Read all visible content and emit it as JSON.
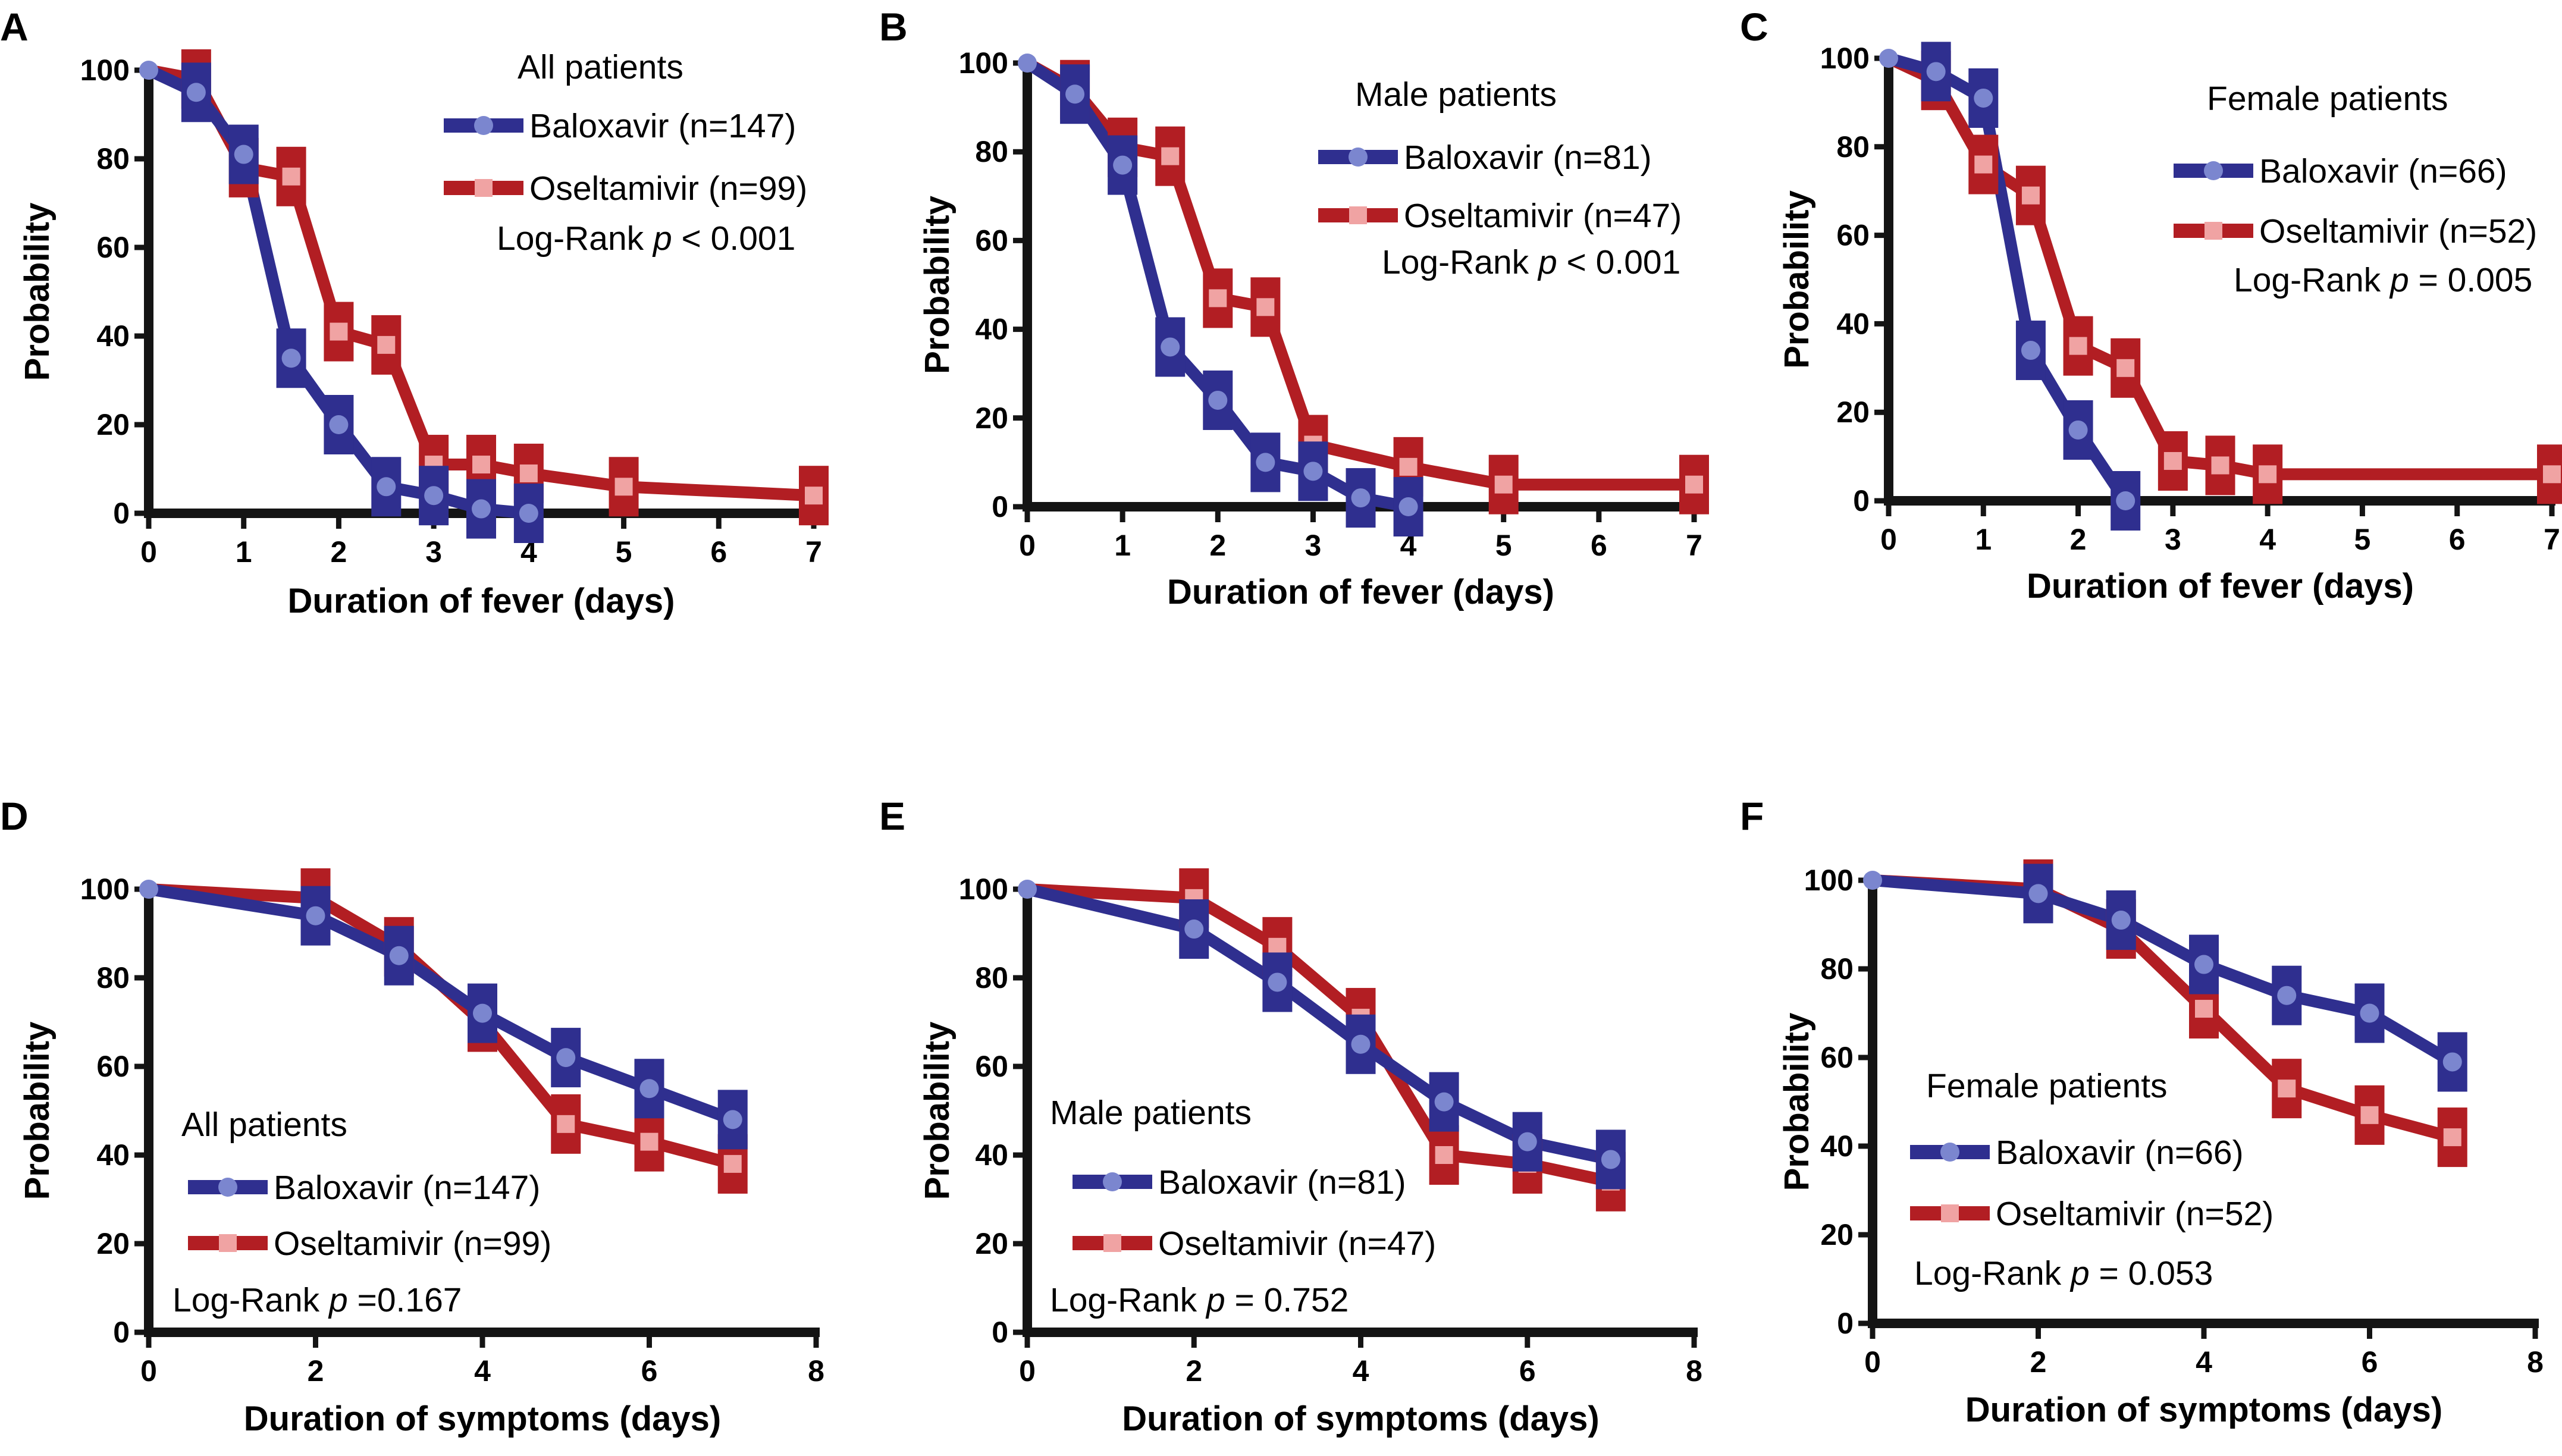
{
  "colors": {
    "baloxavir_line": "#2f2f8f",
    "baloxavir_marker": "#7b86cf",
    "oseltamivir_line": "#b21e23",
    "oseltamivir_marker": "#f0a3a3",
    "axis": "#141414"
  },
  "chart_data": [
    {
      "panel": "A",
      "type": "line",
      "title": "All patients",
      "xlabel": "Duration of fever (days)",
      "ylabel": "Probability",
      "xlim": [
        0,
        7
      ],
      "ylim": [
        0,
        100
      ],
      "xticks": [
        0,
        1,
        2,
        3,
        4,
        5,
        6,
        7
      ],
      "yticks": [
        0,
        20,
        40,
        60,
        80,
        100
      ],
      "legend": [
        "Baloxavir (n=147)",
        "Oseltamivir (n=99)"
      ],
      "pvalue": "Log-Rank p < 0.001",
      "series": [
        {
          "name": "Baloxavir (n=147)",
          "x": [
            0,
            0.5,
            1,
            1.5,
            2,
            2.5,
            3,
            3.5,
            4
          ],
          "values": [
            100,
            95,
            81,
            35,
            20,
            6,
            4,
            1,
            0
          ]
        },
        {
          "name": "Oseltamivir (n=99)",
          "x": [
            0,
            0.5,
            1,
            1.5,
            2,
            2.5,
            3,
            3.5,
            4,
            5,
            7
          ],
          "values": [
            100,
            98,
            78,
            76,
            41,
            38,
            11,
            11,
            9,
            6,
            4
          ]
        }
      ]
    },
    {
      "panel": "B",
      "type": "line",
      "title": "Male patients",
      "xlabel": "Duration of fever (days)",
      "ylabel": "Probability",
      "xlim": [
        0,
        7
      ],
      "ylim": [
        0,
        100
      ],
      "xticks": [
        0,
        1,
        2,
        3,
        4,
        5,
        6,
        7
      ],
      "yticks": [
        0,
        20,
        40,
        60,
        80,
        100
      ],
      "legend": [
        "Baloxavir (n=81)",
        "Oseltamivir (n=47)"
      ],
      "pvalue": "Log-Rank p < 0.001",
      "series": [
        {
          "name": "Baloxavir (n=81)",
          "x": [
            0,
            0.5,
            1,
            1.5,
            2,
            2.5,
            3,
            3.5,
            4
          ],
          "values": [
            100,
            93,
            77,
            36,
            24,
            10,
            8,
            2,
            0
          ]
        },
        {
          "name": "Oseltamivir (n=47)",
          "x": [
            0,
            0.5,
            1,
            1.5,
            2,
            2.5,
            3,
            4,
            5,
            7
          ],
          "values": [
            100,
            94,
            81,
            79,
            47,
            45,
            14,
            9,
            5,
            5
          ]
        }
      ]
    },
    {
      "panel": "C",
      "type": "line",
      "title": "Female patients",
      "xlabel": "Duration of fever (days)",
      "ylabel": "Probability",
      "xlim": [
        0,
        7
      ],
      "ylim": [
        0,
        100
      ],
      "xticks": [
        0,
        1,
        2,
        3,
        4,
        5,
        6,
        7
      ],
      "yticks": [
        0,
        20,
        40,
        60,
        80,
        100
      ],
      "legend": [
        "Baloxavir (n=66)",
        "Oseltamivir (n=52)"
      ],
      "pvalue": "Log-Rank p = 0.005",
      "series": [
        {
          "name": "Baloxavir (n=66)",
          "x": [
            0,
            0.5,
            1,
            1.5,
            2,
            2.5
          ],
          "values": [
            100,
            97,
            91,
            34,
            16,
            0
          ]
        },
        {
          "name": "Oseltamivir (n=52)",
          "x": [
            0,
            0.5,
            1,
            1.5,
            2,
            2.5,
            3,
            3.5,
            4,
            7
          ],
          "values": [
            100,
            95,
            76,
            69,
            35,
            30,
            9,
            8,
            6,
            6
          ]
        }
      ]
    },
    {
      "panel": "D",
      "type": "line",
      "title": "All patients",
      "xlabel": "Duration of symptoms (days)",
      "ylabel": "Probability",
      "xlim": [
        0,
        8
      ],
      "ylim": [
        0,
        100
      ],
      "xticks": [
        0,
        2,
        4,
        6,
        8
      ],
      "yticks": [
        0,
        20,
        40,
        60,
        80,
        100
      ],
      "legend": [
        "Baloxavir (n=147)",
        "Oseltamivir (n=99)"
      ],
      "pvalue": "Log-Rank p =0.167",
      "series": [
        {
          "name": "Baloxavir (n=147)",
          "x": [
            0,
            2,
            3,
            4,
            5,
            6,
            7
          ],
          "values": [
            100,
            94,
            85,
            72,
            62,
            55,
            48
          ]
        },
        {
          "name": "Oseltamivir (n=99)",
          "x": [
            0,
            2,
            3,
            4,
            5,
            6,
            7
          ],
          "values": [
            100,
            98,
            87,
            70,
            47,
            43,
            38
          ]
        }
      ]
    },
    {
      "panel": "E",
      "type": "line",
      "title": "Male patients",
      "xlabel": "Duration of symptoms (days)",
      "ylabel": "Probability",
      "xlim": [
        0,
        8
      ],
      "ylim": [
        0,
        100
      ],
      "xticks": [
        0,
        2,
        4,
        6,
        8
      ],
      "yticks": [
        0,
        20,
        40,
        60,
        80,
        100
      ],
      "legend": [
        "Baloxavir (n=81)",
        "Oseltamivir (n=47)"
      ],
      "pvalue": "Log-Rank p = 0.752",
      "series": [
        {
          "name": "Baloxavir (n=81)",
          "x": [
            0,
            2,
            3,
            4,
            5,
            6,
            7
          ],
          "values": [
            100,
            91,
            79,
            65,
            52,
            43,
            39
          ]
        },
        {
          "name": "Oseltamivir (n=47)",
          "x": [
            0,
            2,
            3,
            4,
            5,
            6,
            7
          ],
          "values": [
            100,
            98,
            87,
            71,
            40,
            38,
            34
          ]
        }
      ]
    },
    {
      "panel": "F",
      "type": "line",
      "title": "Female patients",
      "xlabel": "Duration of symptoms (days)",
      "ylabel": "Probability",
      "xlim": [
        0,
        8
      ],
      "ylim": [
        0,
        100
      ],
      "xticks": [
        0,
        2,
        4,
        6,
        8
      ],
      "yticks": [
        0,
        20,
        40,
        60,
        80,
        100
      ],
      "legend": [
        "Baloxavir (n=66)",
        "Oseltamivir (n=52)"
      ],
      "pvalue": "Log-Rank p = 0.053",
      "series": [
        {
          "name": "Baloxavir (n=66)",
          "x": [
            0,
            2,
            3,
            4,
            5,
            6,
            7
          ],
          "values": [
            100,
            97,
            91,
            81,
            74,
            70,
            59
          ]
        },
        {
          "name": "Oseltamivir (n=52)",
          "x": [
            0,
            2,
            3,
            4,
            5,
            6,
            7
          ],
          "values": [
            100,
            98,
            89,
            71,
            53,
            47,
            42
          ]
        }
      ]
    }
  ]
}
